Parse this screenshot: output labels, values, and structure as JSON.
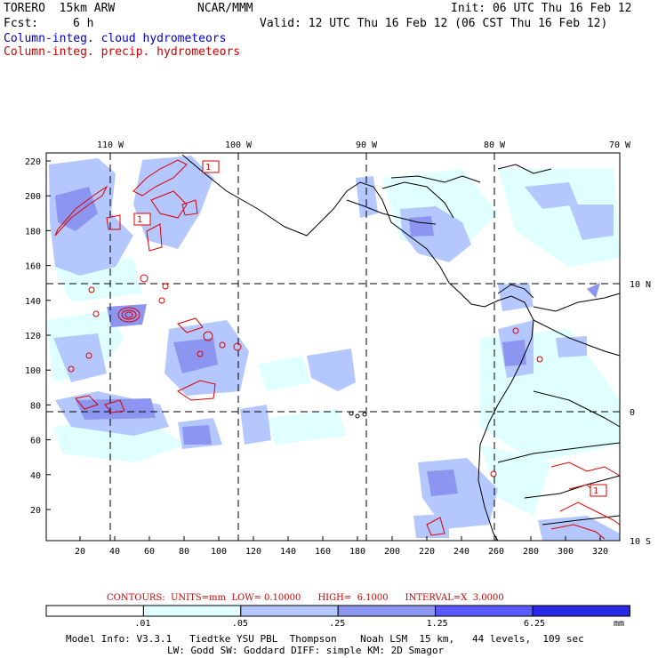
{
  "header": {
    "model_line": "TORERO  15km ARW",
    "center": "NCAR/MMM",
    "init": "Init: 06 UTC Thu 16 Feb 12",
    "fcst_label": "Fcst:",
    "fcst_value": "6 h",
    "valid": "Valid: 12 UTC Thu 16 Feb 12 (06 CST Thu 16 Feb 12)"
  },
  "legend": {
    "cloud": "Column-integ. cloud hydrometeors",
    "precip": "Column-integ. precip. hydrometeors",
    "cloud_color": "#0000cc",
    "precip_color": "#cc0000"
  },
  "map": {
    "top_lon_labels": [
      "110 W",
      "100 W",
      "90 W",
      "80 W",
      "70 W"
    ],
    "right_lat_labels": [
      "10 N",
      "0",
      "10 S"
    ],
    "left_ticks": [
      "220",
      "200",
      "180",
      "160",
      "140",
      "120",
      "100",
      "80",
      "60",
      "40",
      "20"
    ],
    "bottom_ticks": [
      "20",
      "40",
      "60",
      "80",
      "100",
      "120",
      "140",
      "160",
      "180",
      "200",
      "220",
      "240",
      "260",
      "280",
      "300",
      "320"
    ],
    "contour_label": "1",
    "coast_color": "#000000",
    "fill_colors": [
      "#e0ffff",
      "#b4c8ff",
      "#8c96f0",
      "#5a5aff",
      "#2828e6"
    ]
  },
  "contour_info": {
    "text": "CONTOURS:  UNITS=mm  LOW= 0.10000      HIGH=  6.1000      INTERVAL=X  3.0000"
  },
  "colorbar": {
    "colors": [
      "#ffffff",
      "#e0ffff",
      "#b4c8ff",
      "#8c96f0",
      "#5a5aff",
      "#2828e6"
    ],
    "labels": [
      ".01",
      ".05",
      ".25",
      "1.25",
      "6.25"
    ],
    "unit": "mm"
  },
  "model_info": {
    "line1": "Model Info: V3.3.1   Tiedtke YSU PBL  Thompson    Noah LSM  15 km,   44 levels,  109 sec",
    "line2": "LW: Godd SW: Goddard DIFF: simple KM: 2D Smagor"
  }
}
